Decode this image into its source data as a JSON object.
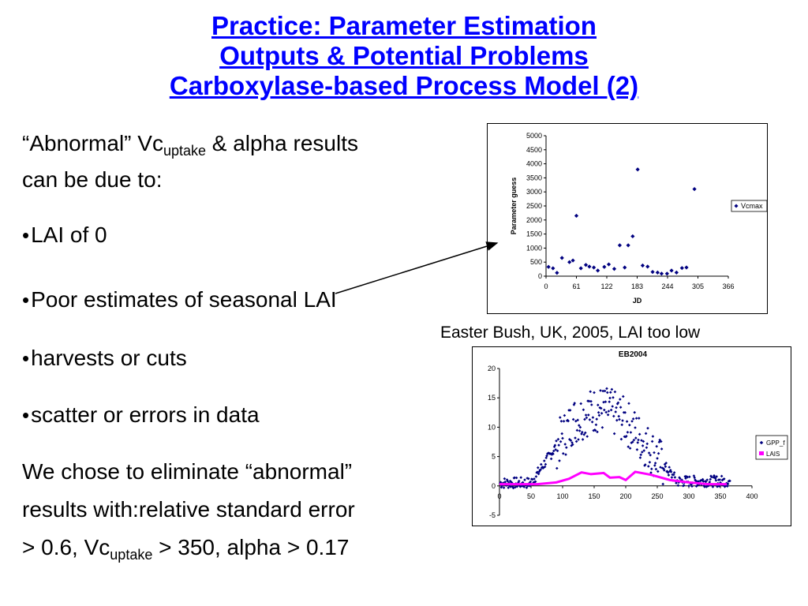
{
  "title": {
    "line1": "Practice: Parameter Estimation",
    "line2": "Outputs & Potential Problems",
    "line3": "Carboxylase-based Process Model (2)"
  },
  "intro": {
    "p1": "“Abnormal” Vc",
    "sub": "uptake",
    "p2": " & alpha results",
    "line2": "can be due to:"
  },
  "bullets": [
    "LAI of 0",
    "Poor estimates of seasonal LAI",
    "harvests or cuts",
    "scatter or errors in data"
  ],
  "conclusion": {
    "line1": "We chose to eliminate “abnormal”",
    "line2": "results with:relative standard error",
    "line3a": "> 0.6, Vc",
    "sub": "uptake",
    "line3b": " > 350, alpha > 0.17"
  },
  "caption": "Easter Bush, UK, 2005, LAI too low",
  "chart_data": [
    {
      "type": "scatter",
      "title": "",
      "xlabel": "JD",
      "ylabel": "Parameter guess",
      "xticks": [
        "0",
        "61",
        "122",
        "183",
        "244",
        "305",
        "366"
      ],
      "yticks": [
        "0",
        "500",
        "1000",
        "1500",
        "2000",
        "2500",
        "3000",
        "3500",
        "4000",
        "4500",
        "5000"
      ],
      "xlim": [
        0,
        366
      ],
      "ylim": [
        0,
        5000
      ],
      "legend": "right",
      "series": [
        {
          "name": "Vcmax",
          "color": "#000080",
          "points": [
            [
              5,
              330
            ],
            [
              14,
              280
            ],
            [
              22,
              120
            ],
            [
              32,
              650
            ],
            [
              47,
              500
            ],
            [
              54,
              560
            ],
            [
              61,
              2150
            ],
            [
              70,
              280
            ],
            [
              80,
              400
            ],
            [
              87,
              340
            ],
            [
              96,
              310
            ],
            [
              104,
              200
            ],
            [
              117,
              330
            ],
            [
              126,
              420
            ],
            [
              137,
              260
            ],
            [
              148,
              1100
            ],
            [
              158,
              310
            ],
            [
              165,
              1100
            ],
            [
              174,
              1420
            ],
            [
              184,
              3800
            ],
            [
              194,
              380
            ],
            [
              204,
              340
            ],
            [
              214,
              150
            ],
            [
              224,
              130
            ],
            [
              232,
              90
            ],
            [
              243,
              90
            ],
            [
              252,
              200
            ],
            [
              262,
              130
            ],
            [
              273,
              290
            ],
            [
              282,
              310
            ],
            [
              298,
              3100
            ]
          ]
        }
      ]
    },
    {
      "type": "scatter",
      "title": "EB2004",
      "xlabel": "",
      "ylabel": "",
      "xticks": [
        "0",
        "50",
        "100",
        "150",
        "200",
        "250",
        "300",
        "350",
        "400"
      ],
      "yticks": [
        "-5",
        "0",
        "5",
        "10",
        "15",
        "20"
      ],
      "xlim": [
        0,
        400
      ],
      "ylim": [
        -5,
        20
      ],
      "legend": "right",
      "series": [
        {
          "name": "GPP_f",
          "color": "#000080"
        },
        {
          "name": "LAIS",
          "color": "#ff00ff",
          "line": [
            [
              0,
              0.3
            ],
            [
              60,
              0.3
            ],
            [
              90,
              0.6
            ],
            [
              110,
              1.2
            ],
            [
              130,
              2.3
            ],
            [
              145,
              2.0
            ],
            [
              165,
              2.2
            ],
            [
              175,
              1.4
            ],
            [
              190,
              1.5
            ],
            [
              200,
              1.0
            ],
            [
              215,
              2.4
            ],
            [
              240,
              1.9
            ],
            [
              270,
              1.0
            ],
            [
              300,
              0.6
            ],
            [
              330,
              0.3
            ],
            [
              360,
              0.3
            ]
          ]
        }
      ]
    }
  ]
}
